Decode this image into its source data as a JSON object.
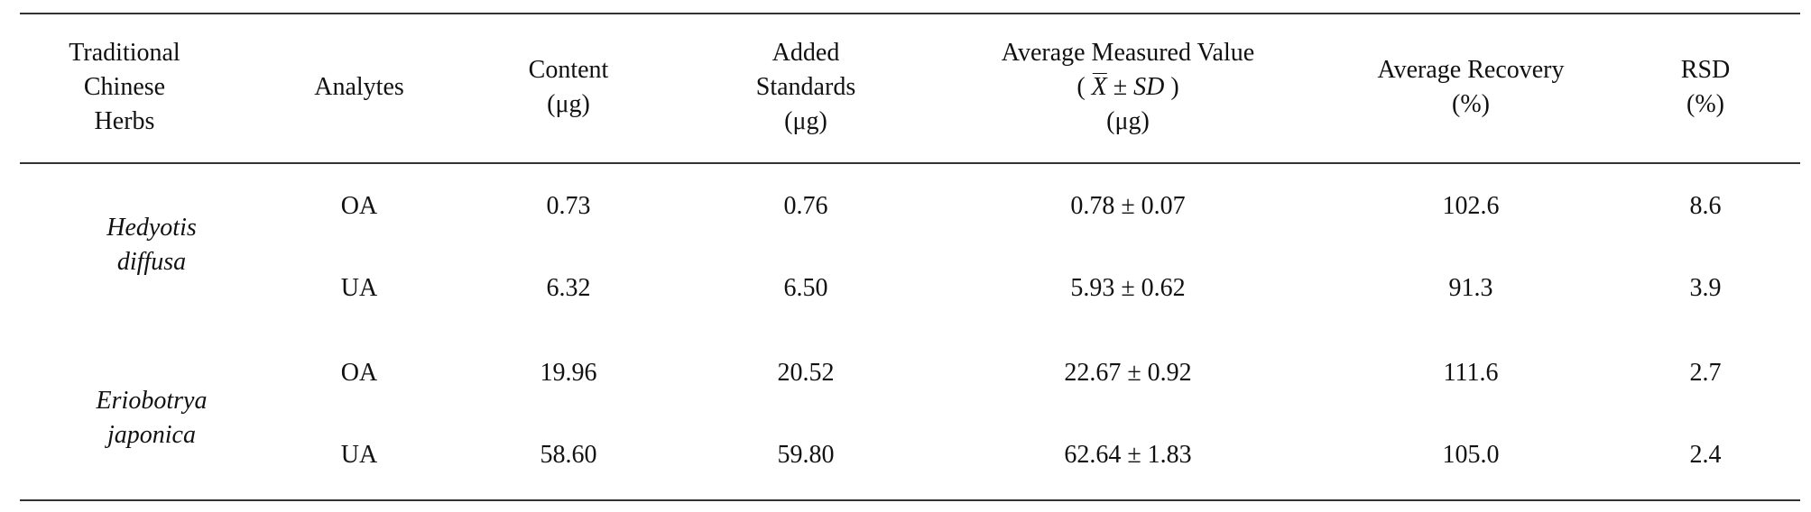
{
  "table": {
    "headers": {
      "herbs": [
        "Traditional",
        "Chinese",
        "Herbs"
      ],
      "analytes": "Analytes",
      "content": [
        "Content",
        "(μg)"
      ],
      "added": [
        "Added",
        "Standards",
        "(μg)"
      ],
      "measured": {
        "line1": "Average Measured Value",
        "open": "( ",
        "xbar": "X",
        "pm": " ± ",
        "sd": "SD",
        "close": " )",
        "unit": "(μg)"
      },
      "recovery": [
        "Average Recovery",
        "(%)"
      ],
      "rsd": [
        "RSD",
        "(%)"
      ]
    },
    "herbs": [
      {
        "name_line1": "Hedyotis",
        "name_line2": "diffusa"
      },
      {
        "name_line1": "Eriobotrya",
        "name_line2": "japonica"
      }
    ],
    "rows": [
      {
        "analyte": "OA",
        "content": "0.73",
        "added": "0.76",
        "measured": "0.78 ± 0.07",
        "recovery": "102.6",
        "rsd": "8.6"
      },
      {
        "analyte": "UA",
        "content": "6.32",
        "added": "6.50",
        "measured": "5.93 ± 0.62",
        "recovery": "91.3",
        "rsd": "3.9"
      },
      {
        "analyte": "OA",
        "content": "19.96",
        "added": "20.52",
        "measured": "22.67 ± 0.92",
        "recovery": "111.6",
        "rsd": "2.7"
      },
      {
        "analyte": "UA",
        "content": "58.60",
        "added": "59.80",
        "measured": "62.64 ± 1.83",
        "recovery": "105.0",
        "rsd": "2.4"
      }
    ]
  }
}
